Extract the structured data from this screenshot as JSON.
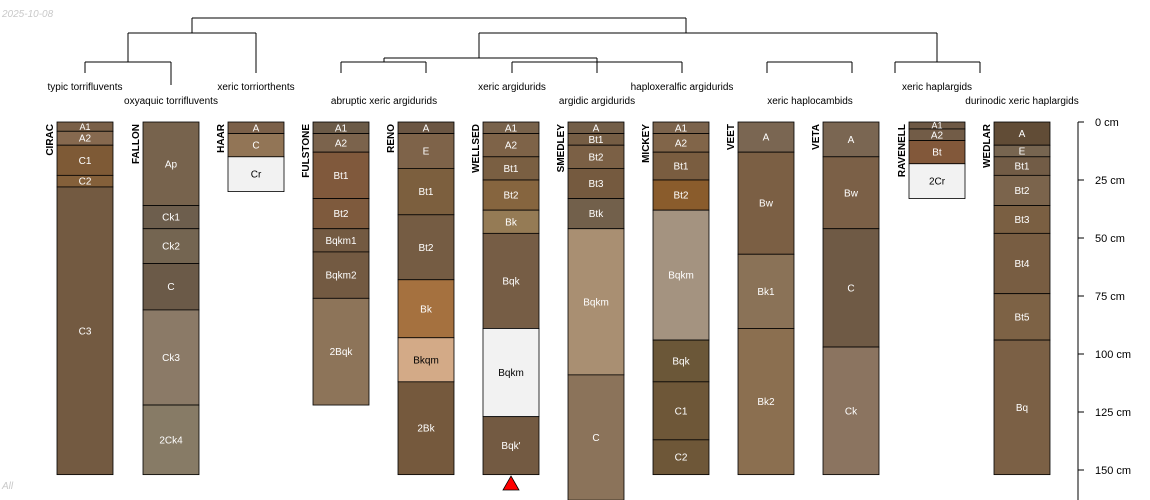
{
  "date": "2025-10-08",
  "filter": "All",
  "depth_axis": {
    "unit": "cm",
    "ticks": [
      0,
      25,
      50,
      75,
      100,
      125,
      150
    ]
  },
  "taxa": {
    "typic_torrifluvents": "typic torrifluvents",
    "oxyaquic_torrifluvents": "oxyaquic torrifluvents",
    "xeric_torriorthents": "xeric torriorthents",
    "abruptic_xeric_argidurids": "abruptic xeric argidurids",
    "xeric_argidurids": "xeric argidurids",
    "argidic_argidurids": "argidic argidurids",
    "haploxeralfic_argidurids": "haploxeralfic argidurids",
    "xeric_haplocambids": "xeric haplocambids",
    "xeric_haplargids": "xeric haplargids",
    "durinodic_xeric_haplargids": "durinodic xeric haplargids"
  },
  "profiles": [
    {
      "name": "CIRAC",
      "horizons": [
        {
          "name": "A1",
          "top": 0,
          "bottom": 4,
          "color": "#7a6048"
        },
        {
          "name": "A2",
          "top": 4,
          "bottom": 10,
          "color": "#86694f"
        },
        {
          "name": "C1",
          "top": 10,
          "bottom": 23,
          "color": "#7e5a36"
        },
        {
          "name": "C2",
          "top": 23,
          "bottom": 28,
          "color": "#84603a"
        },
        {
          "name": "C3",
          "top": 28,
          "bottom": 152,
          "color": "#735a41"
        }
      ]
    },
    {
      "name": "FALLON",
      "horizons": [
        {
          "name": "Ap",
          "top": 0,
          "bottom": 36,
          "color": "#77634d"
        },
        {
          "name": "Ck1",
          "top": 36,
          "bottom": 46,
          "color": "#6d5e4d"
        },
        {
          "name": "Ck2",
          "top": 46,
          "bottom": 61,
          "color": "#746551"
        },
        {
          "name": "C",
          "top": 61,
          "bottom": 81,
          "color": "#6b5a48"
        },
        {
          "name": "Ck3",
          "top": 81,
          "bottom": 122,
          "color": "#8b7a67"
        },
        {
          "name": "2Ck4",
          "top": 122,
          "bottom": 152,
          "color": "#877b66"
        }
      ]
    },
    {
      "name": "HAAR",
      "horizons": [
        {
          "name": "A",
          "top": 0,
          "bottom": 5,
          "color": "#7b6049"
        },
        {
          "name": "C",
          "top": 5,
          "bottom": 15,
          "color": "#927556"
        },
        {
          "name": "Cr",
          "top": 15,
          "bottom": 30,
          "color": "#f2f2f2"
        }
      ]
    },
    {
      "name": "FULSTONE",
      "horizons": [
        {
          "name": "A1",
          "top": 0,
          "bottom": 5,
          "color": "#6b5a47"
        },
        {
          "name": "A2",
          "top": 5,
          "bottom": 13,
          "color": "#7b634c"
        },
        {
          "name": "Bt1",
          "top": 13,
          "bottom": 33,
          "color": "#80593c"
        },
        {
          "name": "Bt2",
          "top": 33,
          "bottom": 46,
          "color": "#7e5a3d"
        },
        {
          "name": "Bqkm1",
          "top": 46,
          "bottom": 56,
          "color": "#735a42"
        },
        {
          "name": "Bqkm2",
          "top": 56,
          "bottom": 76,
          "color": "#735a42"
        },
        {
          "name": "2Bqk",
          "top": 76,
          "bottom": 122,
          "color": "#8d7459"
        }
      ]
    },
    {
      "name": "RENO",
      "horizons": [
        {
          "name": "A",
          "top": 0,
          "bottom": 5,
          "color": "#6b5643"
        },
        {
          "name": "E",
          "top": 5,
          "bottom": 20,
          "color": "#7e6349"
        },
        {
          "name": "Bt1",
          "top": 20,
          "bottom": 40,
          "color": "#7c5f3e"
        },
        {
          "name": "Bt2",
          "top": 40,
          "bottom": 68,
          "color": "#755c43"
        },
        {
          "name": "Bk",
          "top": 68,
          "bottom": 93,
          "color": "#a5713f"
        },
        {
          "name": "Bkqm",
          "top": 93,
          "bottom": 112,
          "color": "#d3aa87"
        },
        {
          "name": "2Bk",
          "top": 112,
          "bottom": 152,
          "color": "#75593d"
        }
      ]
    },
    {
      "name": "WELLSED",
      "horizons": [
        {
          "name": "A1",
          "top": 0,
          "bottom": 5,
          "color": "#78624b"
        },
        {
          "name": "A2",
          "top": 5,
          "bottom": 15,
          "color": "#7e6348"
        },
        {
          "name": "Bt1",
          "top": 15,
          "bottom": 25,
          "color": "#7a5f42"
        },
        {
          "name": "Bt2",
          "top": 25,
          "bottom": 38,
          "color": "#86653f"
        },
        {
          "name": "Bk",
          "top": 38,
          "bottom": 48,
          "color": "#957b55"
        },
        {
          "name": "Bqk",
          "top": 48,
          "bottom": 89,
          "color": "#765d45"
        },
        {
          "name": "Bqkm",
          "top": 89,
          "bottom": 127,
          "color": "#f2f2f2"
        },
        {
          "name": "Bqk'",
          "top": 127,
          "bottom": 152,
          "color": "#735a42"
        }
      ]
    },
    {
      "name": "SMEDLEY",
      "horizons": [
        {
          "name": "A",
          "top": 0,
          "bottom": 5,
          "color": "#735e48"
        },
        {
          "name": "Bt1",
          "top": 5,
          "bottom": 10,
          "color": "#755d44"
        },
        {
          "name": "Bt2",
          "top": 10,
          "bottom": 20,
          "color": "#7b6045"
        },
        {
          "name": "Bt3",
          "top": 20,
          "bottom": 33,
          "color": "#755a3f"
        },
        {
          "name": "Btk",
          "top": 33,
          "bottom": 46,
          "color": "#72604b"
        },
        {
          "name": "Bqkm",
          "top": 46,
          "bottom": 109,
          "color": "#a98f72"
        },
        {
          "name": "C",
          "top": 109,
          "bottom": 163,
          "color": "#8b735a"
        }
      ]
    },
    {
      "name": "MICKEY",
      "horizons": [
        {
          "name": "A1",
          "top": 0,
          "bottom": 5,
          "color": "#7b634c"
        },
        {
          "name": "A2",
          "top": 5,
          "bottom": 13,
          "color": "#816549"
        },
        {
          "name": "Bt1",
          "top": 13,
          "bottom": 25,
          "color": "#7a5d40"
        },
        {
          "name": "Bt2",
          "top": 25,
          "bottom": 38,
          "color": "#8a5c2c"
        },
        {
          "name": "Bqkm",
          "top": 38,
          "bottom": 94,
          "color": "#a49380"
        },
        {
          "name": "Bqk",
          "top": 94,
          "bottom": 112,
          "color": "#6b5738"
        },
        {
          "name": "C1",
          "top": 112,
          "bottom": 137,
          "color": "#6e5738"
        },
        {
          "name": "C2",
          "top": 137,
          "bottom": 152,
          "color": "#6e5738"
        }
      ]
    },
    {
      "name": "VEET",
      "horizons": [
        {
          "name": "A",
          "top": 0,
          "bottom": 13,
          "color": "#7a6652"
        },
        {
          "name": "Bw",
          "top": 13,
          "bottom": 57,
          "color": "#7b5f44"
        },
        {
          "name": "Bk1",
          "top": 57,
          "bottom": 89,
          "color": "#8a7257"
        },
        {
          "name": "Bk2",
          "top": 89,
          "bottom": 152,
          "color": "#8b6f50"
        }
      ]
    },
    {
      "name": "VETA",
      "horizons": [
        {
          "name": "A",
          "top": 0,
          "bottom": 15,
          "color": "#7a6652"
        },
        {
          "name": "Bw",
          "top": 15,
          "bottom": 46,
          "color": "#7b6047"
        },
        {
          "name": "C",
          "top": 46,
          "bottom": 97,
          "color": "#6f5a45"
        },
        {
          "name": "Ck",
          "top": 97,
          "bottom": 152,
          "color": "#8b7460"
        }
      ]
    },
    {
      "name": "RAVENELL",
      "horizons": [
        {
          "name": "A1",
          "top": 0,
          "bottom": 3,
          "color": "#6e5945"
        },
        {
          "name": "A2",
          "top": 3,
          "bottom": 8,
          "color": "#725c47"
        },
        {
          "name": "Bt",
          "top": 8,
          "bottom": 18,
          "color": "#82583a"
        },
        {
          "name": "2Cr",
          "top": 18,
          "bottom": 33,
          "color": "#f2f2f2"
        }
      ]
    },
    {
      "name": "WEDLAR",
      "horizons": [
        {
          "name": "A",
          "top": 0,
          "bottom": 10,
          "color": "#614c36"
        },
        {
          "name": "E",
          "top": 10,
          "bottom": 15,
          "color": "#776550"
        },
        {
          "name": "Bt1",
          "top": 15,
          "bottom": 23,
          "color": "#725c46"
        },
        {
          "name": "Bt2",
          "top": 23,
          "bottom": 36,
          "color": "#7b644c"
        },
        {
          "name": "Bt3",
          "top": 36,
          "bottom": 48,
          "color": "#7a5f42"
        },
        {
          "name": "Bt4",
          "top": 48,
          "bottom": 74,
          "color": "#785d42"
        },
        {
          "name": "Bt5",
          "top": 74,
          "bottom": 94,
          "color": "#7d6245"
        },
        {
          "name": "Bq",
          "top": 94,
          "bottom": 152,
          "color": "#7b6045"
        }
      ]
    }
  ],
  "truncated_marker": {
    "profile": "WELLSED",
    "color": "#ff0000"
  }
}
